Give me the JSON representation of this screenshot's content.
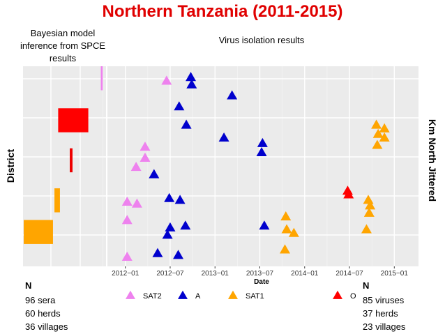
{
  "title": "Northern Tanzania (2011-2015)",
  "left_panel": {
    "title": [
      "Bayesian model",
      "inference from SPCE",
      "results"
    ],
    "ylabel": "District",
    "n_label": "N",
    "stats": [
      "96 sera",
      "60 herds",
      "36 villages"
    ],
    "bars": [
      {
        "name": "district-1",
        "color": "#ee82ee",
        "row": 0.88,
        "height": 0.12,
        "width": 0.02
      },
      {
        "name": "district-2",
        "color": "#ff0000",
        "row": 0.67,
        "height": 0.12,
        "width": 0.33
      },
      {
        "name": "district-3",
        "color": "#ee0000",
        "row": 0.47,
        "height": 0.12,
        "width": 0.03
      },
      {
        "name": "district-4",
        "color": "#ffa500",
        "row": 0.27,
        "height": 0.12,
        "width": 0.06
      },
      {
        "name": "district-5",
        "color": "#ffa500",
        "row": 0.07,
        "height": 0.12,
        "width": 0.32
      }
    ]
  },
  "right_panel": {
    "title": "Virus isolation results",
    "ylabel": "Km North Jittered",
    "n_label": "N",
    "stats": [
      "85 viruses",
      "37 herds",
      "23 villages"
    ]
  },
  "legend": [
    {
      "label": "SAT2",
      "color": "#ee82ee"
    },
    {
      "label": "A",
      "color": "#0000cd"
    },
    {
      "label": "SAT1",
      "color": "#ffa500"
    },
    {
      "label": "O",
      "color": "#ff0000"
    }
  ],
  "chart_data": {
    "type": "scatter",
    "title": "Virus isolation results",
    "xlabel": "Date",
    "ylabel": "Km North Jittered",
    "xlim": [
      2011.8,
      2015.27
    ],
    "ylim": [
      0,
      1
    ],
    "x_ticks": [
      {
        "value": 2012.0,
        "label": "2012−01"
      },
      {
        "value": 2012.5,
        "label": "2012−07"
      },
      {
        "value": 2013.0,
        "label": "2013−01"
      },
      {
        "value": 2013.5,
        "label": "2013−07"
      },
      {
        "value": 2014.0,
        "label": "2014−01"
      },
      {
        "value": 2014.5,
        "label": "2014−07"
      },
      {
        "value": 2015.0,
        "label": "2015−01"
      }
    ],
    "series": [
      {
        "name": "SAT2",
        "color": "#ee82ee",
        "points": [
          {
            "x": 2012.02,
            "y": 0.32
          },
          {
            "x": 2012.13,
            "y": 0.31
          },
          {
            "x": 2012.02,
            "y": 0.22
          },
          {
            "x": 2012.12,
            "y": 0.51
          },
          {
            "x": 2012.22,
            "y": 0.56
          },
          {
            "x": 2012.22,
            "y": 0.62
          },
          {
            "x": 2012.46,
            "y": 0.98
          },
          {
            "x": 2012.02,
            "y": 0.02
          }
        ]
      },
      {
        "name": "A",
        "color": "#0000cd",
        "points": [
          {
            "x": 2012.73,
            "y": 1.0
          },
          {
            "x": 2012.74,
            "y": 0.96
          },
          {
            "x": 2012.6,
            "y": 0.84
          },
          {
            "x": 2012.68,
            "y": 0.74
          },
          {
            "x": 2013.1,
            "y": 0.67
          },
          {
            "x": 2013.19,
            "y": 0.9
          },
          {
            "x": 2013.53,
            "y": 0.64
          },
          {
            "x": 2013.52,
            "y": 0.59
          },
          {
            "x": 2012.32,
            "y": 0.47
          },
          {
            "x": 2012.49,
            "y": 0.34
          },
          {
            "x": 2012.61,
            "y": 0.33
          },
          {
            "x": 2012.5,
            "y": 0.18
          },
          {
            "x": 2012.67,
            "y": 0.19
          },
          {
            "x": 2013.55,
            "y": 0.19
          },
          {
            "x": 2012.36,
            "y": 0.04
          },
          {
            "x": 2012.59,
            "y": 0.03
          },
          {
            "x": 2012.47,
            "y": 0.14
          }
        ]
      },
      {
        "name": "SAT1",
        "color": "#ffa500",
        "points": [
          {
            "x": 2014.8,
            "y": 0.74
          },
          {
            "x": 2014.89,
            "y": 0.72
          },
          {
            "x": 2014.82,
            "y": 0.69
          },
          {
            "x": 2014.89,
            "y": 0.67
          },
          {
            "x": 2014.81,
            "y": 0.63
          },
          {
            "x": 2014.71,
            "y": 0.33
          },
          {
            "x": 2014.73,
            "y": 0.3
          },
          {
            "x": 2014.72,
            "y": 0.26
          },
          {
            "x": 2014.69,
            "y": 0.17
          },
          {
            "x": 2013.79,
            "y": 0.24
          },
          {
            "x": 2013.8,
            "y": 0.17
          },
          {
            "x": 2013.88,
            "y": 0.15
          },
          {
            "x": 2013.78,
            "y": 0.06
          }
        ]
      },
      {
        "name": "O",
        "color": "#ff0000",
        "points": [
          {
            "x": 2014.48,
            "y": 0.38
          },
          {
            "x": 2014.49,
            "y": 0.36
          }
        ]
      }
    ]
  }
}
